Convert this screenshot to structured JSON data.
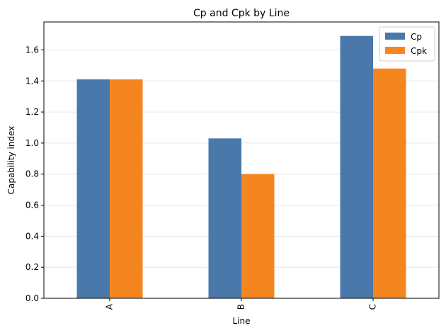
{
  "chart_data": {
    "type": "bar",
    "title": "Cp and Cpk by Line",
    "xlabel": "Line",
    "ylabel": "Capability index",
    "categories": [
      "A",
      "B",
      "C"
    ],
    "series": [
      {
        "name": "Cp",
        "values": [
          1.41,
          1.03,
          1.69
        ],
        "color": "#4a78aa"
      },
      {
        "name": "Cpk",
        "values": [
          1.41,
          0.8,
          1.48
        ],
        "color": "#f5861f"
      }
    ],
    "ylim": [
      0,
      1.78
    ],
    "yticks": [
      "0.0",
      "0.2",
      "0.4",
      "0.6",
      "0.8",
      "1.0",
      "1.2",
      "1.4",
      "1.6"
    ],
    "grid": "horizontal",
    "legend_position": "top-right"
  }
}
